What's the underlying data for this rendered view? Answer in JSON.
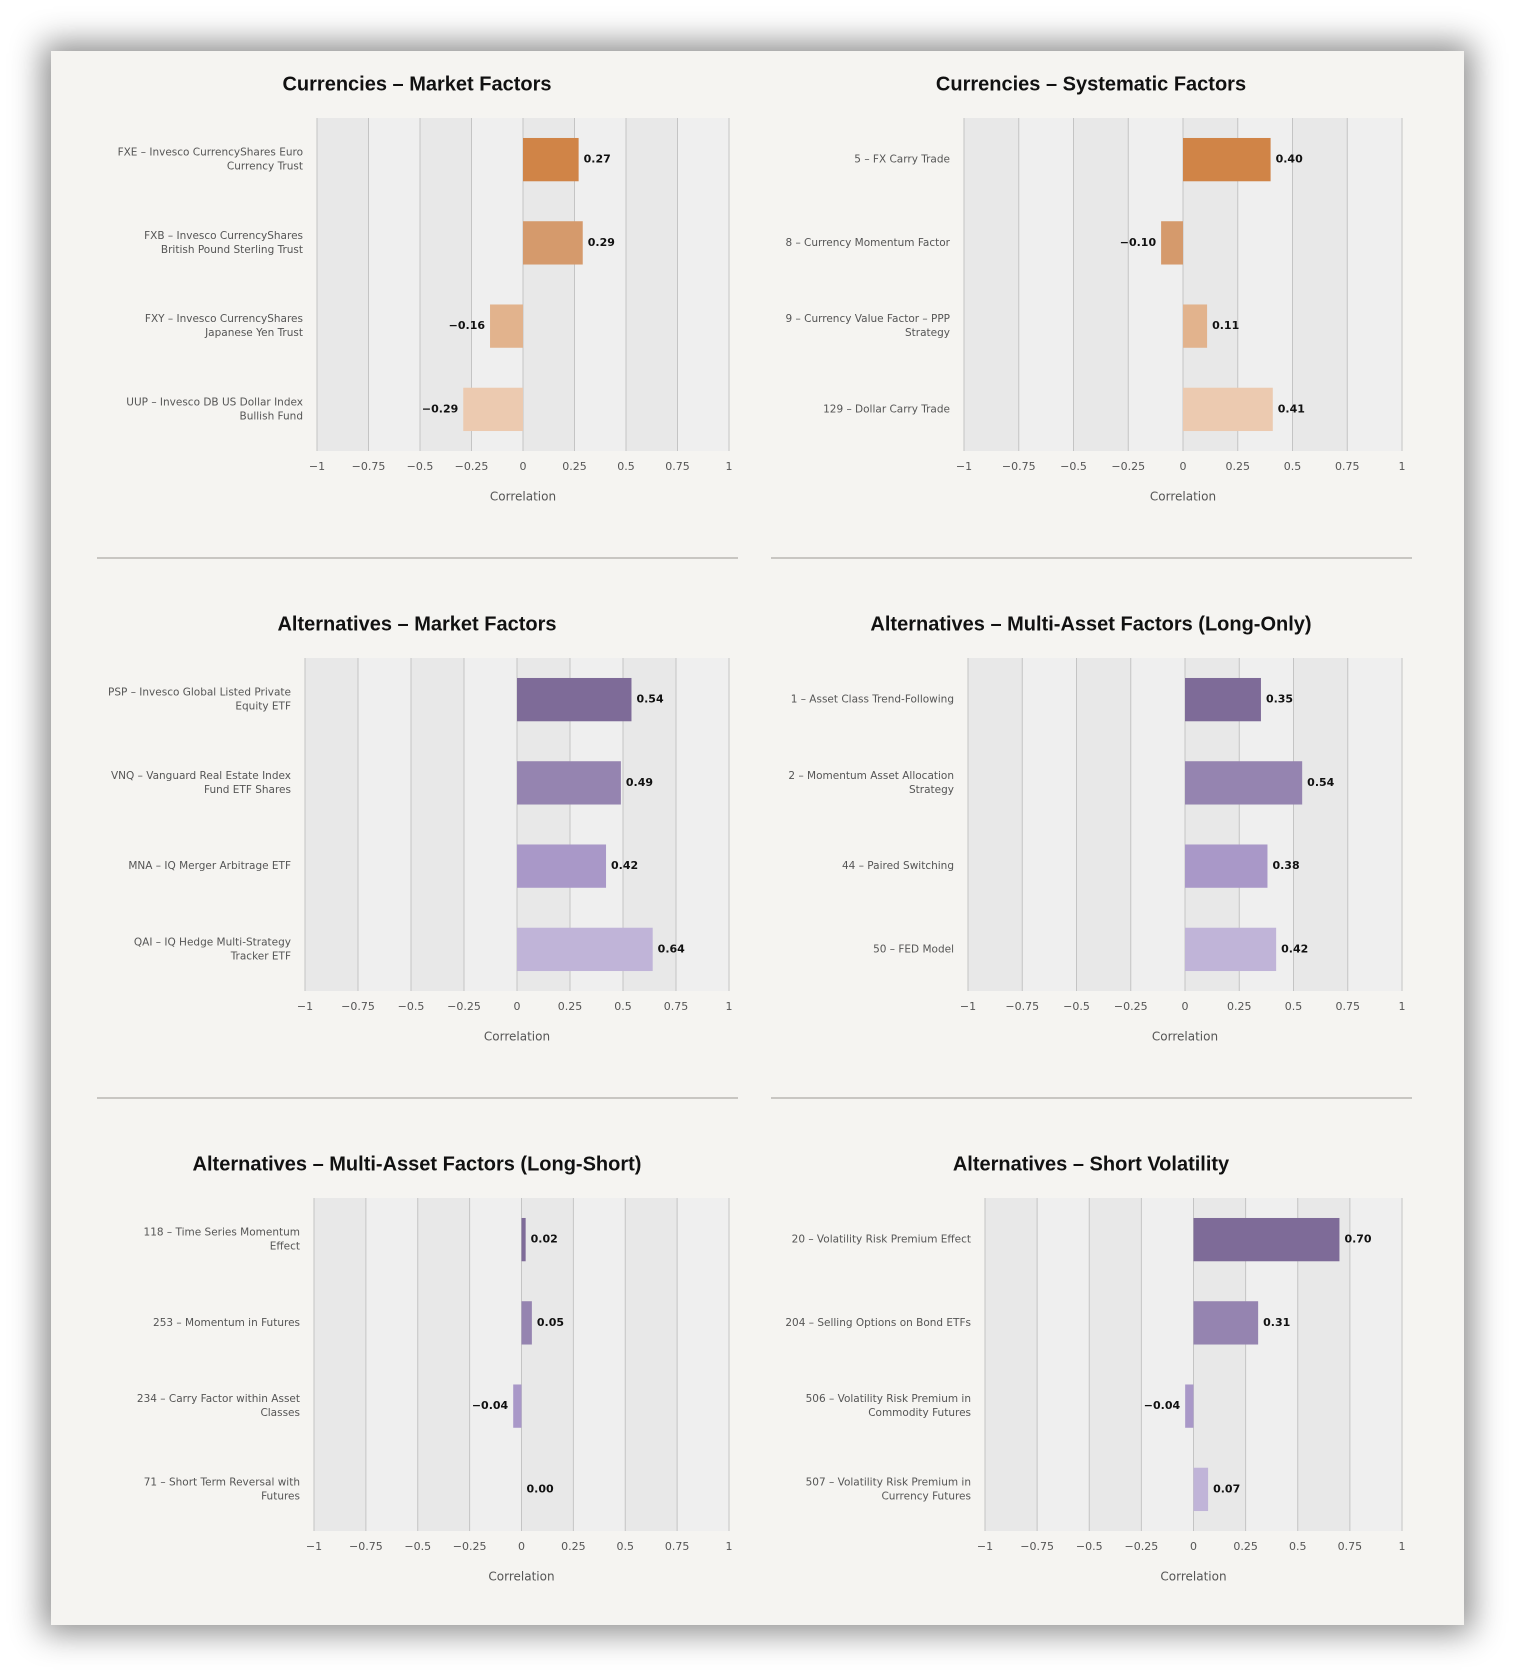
{
  "chart_data": [
    {
      "type": "barh",
      "title": "Currencies – Market Factors",
      "xlabel": "Correlation",
      "categories": [
        "FXE – Invesco CurrencyShares Euro Currency Trust",
        "FXB – Invesco CurrencyShares British Pound Sterling Trust",
        "FXY – Invesco CurrencyShares Japanese Yen Trust",
        "UUP – Invesco DB US Dollar Index Bullish Fund"
      ],
      "values": [
        0.27,
        0.29,
        -0.16,
        -0.29
      ],
      "value_labels": [
        "0.27",
        "0.29",
        "−0.16",
        "−0.29"
      ],
      "colors": [
        "#d08447",
        "#d59a6c",
        "#e2b38d",
        "#eccab0"
      ],
      "xlim": [
        -1,
        1
      ],
      "xticks": [
        {
          "value": -1,
          "label": "−1"
        },
        {
          "value": -0.75,
          "label": "−0.75"
        },
        {
          "value": -0.5,
          "label": "−0.5"
        },
        {
          "value": -0.25,
          "label": "−0.25"
        },
        0,
        0.25,
        0.5,
        0.75,
        1
      ],
      "grid": true
    },
    {
      "type": "barh",
      "title": "Currencies – Systematic Factors",
      "xlabel": "Correlation",
      "categories": [
        "5 – FX Carry Trade",
        "8 – Currency Momentum Factor",
        "9 – Currency Value Factor – PPP Strategy",
        "129 – Dollar Carry Trade"
      ],
      "values": [
        0.4,
        -0.1,
        0.11,
        0.41
      ],
      "value_labels": [
        "0.40",
        "−0.10",
        "0.11",
        "0.41"
      ],
      "colors": [
        "#d08447",
        "#d59a6c",
        "#e2b38d",
        "#eccab0"
      ],
      "xlim": [
        -1,
        1
      ],
      "xticks": [
        {
          "value": -1,
          "label": "−1"
        },
        {
          "value": -0.75,
          "label": "−0.75"
        },
        {
          "value": -0.5,
          "label": "−0.5"
        },
        {
          "value": -0.25,
          "label": "−0.25"
        },
        0,
        0.25,
        0.5,
        0.75,
        1
      ],
      "grid": true
    },
    {
      "type": "barh",
      "title": "Alternatives – Market Factors",
      "xlabel": "Correlation",
      "categories": [
        "PSP – Invesco Global Listed Private Equity ETF",
        "VNQ – Vanguard Real Estate Index Fund ETF Shares",
        "MNA – IQ Merger Arbitrage ETF",
        "QAI – IQ Hedge Multi-Strategy Tracker ETF"
      ],
      "values": [
        0.54,
        0.49,
        0.42,
        0.64
      ],
      "value_labels": [
        "0.54",
        "0.49",
        "0.42",
        "0.64"
      ],
      "colors": [
        "#7e6b98",
        "#9584b0",
        "#a998c8",
        "#c0b4d8"
      ],
      "xlim": [
        -1,
        1
      ],
      "xticks": [
        {
          "value": -1,
          "label": "−1"
        },
        {
          "value": -0.75,
          "label": "−0.75"
        },
        {
          "value": -0.5,
          "label": "−0.5"
        },
        {
          "value": -0.25,
          "label": "−0.25"
        },
        0,
        0.25,
        0.5,
        0.75,
        1
      ],
      "grid": true
    },
    {
      "type": "barh",
      "title": "Alternatives – Multi-Asset Factors (Long-Only)",
      "xlabel": "Correlation",
      "categories": [
        "1 – Asset Class Trend-Following",
        "2 – Momentum Asset Allocation Strategy",
        "44 – Paired Switching",
        "50 – FED Model"
      ],
      "values": [
        0.35,
        0.54,
        0.38,
        0.42
      ],
      "value_labels": [
        "0.35",
        "0.54",
        "0.38",
        "0.42"
      ],
      "colors": [
        "#7e6b98",
        "#9584b0",
        "#a998c8",
        "#c0b4d8"
      ],
      "xlim": [
        -1,
        1
      ],
      "xticks": [
        {
          "value": -1,
          "label": "−1"
        },
        {
          "value": -0.75,
          "label": "−0.75"
        },
        {
          "value": -0.5,
          "label": "−0.5"
        },
        {
          "value": -0.25,
          "label": "−0.25"
        },
        0,
        0.25,
        0.5,
        0.75,
        1
      ],
      "grid": true
    },
    {
      "type": "barh",
      "title": "Alternatives – Multi-Asset Factors (Long-Short)",
      "xlabel": "Correlation",
      "categories": [
        "118 – Time Series Momentum Effect",
        "253 – Momentum in Futures",
        "234 – Carry Factor within Asset Classes",
        "71 – Short Term Reversal with Futures"
      ],
      "values": [
        0.02,
        0.05,
        -0.04,
        0
      ],
      "value_labels": [
        "0.02",
        "0.05",
        "−0.04",
        "0.00"
      ],
      "colors": [
        "#7e6b98",
        "#9584b0",
        "#a998c8",
        "#c0b4d8"
      ],
      "xlim": [
        -1,
        1
      ],
      "xticks": [
        {
          "value": -1,
          "label": "−1"
        },
        {
          "value": -0.75,
          "label": "−0.75"
        },
        {
          "value": -0.5,
          "label": "−0.5"
        },
        {
          "value": -0.25,
          "label": "−0.25"
        },
        0,
        0.25,
        0.5,
        0.75,
        1
      ],
      "grid": true
    },
    {
      "type": "barh",
      "title": "Alternatives – Short Volatility",
      "xlabel": "Correlation",
      "categories": [
        "20 – Volatility Risk Premium Effect",
        "204 – Selling Options on Bond ETFs",
        "506 – Volatility Risk Premium in Commodity Futures",
        "507 – Volatility Risk Premium in Currency Futures"
      ],
      "values": [
        0.7,
        0.31,
        -0.04,
        0.07
      ],
      "value_labels": [
        "0.70",
        "0.31",
        "−0.04",
        "0.07"
      ],
      "colors": [
        "#7e6b98",
        "#9584b0",
        "#a998c8",
        "#c0b4d8"
      ],
      "xlim": [
        -1,
        1
      ],
      "xticks": [
        {
          "value": -1,
          "label": "−1"
        },
        {
          "value": -0.75,
          "label": "−0.75"
        },
        {
          "value": -0.5,
          "label": "−0.5"
        },
        {
          "value": -0.25,
          "label": "−0.25"
        },
        0,
        0.25,
        0.5,
        0.75,
        1
      ],
      "grid": true
    }
  ]
}
